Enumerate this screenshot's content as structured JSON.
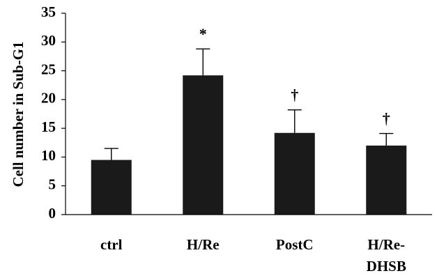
{
  "chart_data": {
    "type": "bar",
    "title": "",
    "xlabel": "",
    "ylabel": "Cell number in Sub-G1",
    "ylim": [
      0,
      35
    ],
    "yticks": [
      0,
      5,
      10,
      15,
      20,
      25,
      30,
      35
    ],
    "grid": false,
    "categories": [
      {
        "lines": [
          "ctrl"
        ]
      },
      {
        "lines": [
          "H/Re"
        ]
      },
      {
        "lines": [
          "PostC"
        ]
      },
      {
        "lines": [
          "H/Re-",
          "DHSB"
        ]
      }
    ],
    "values": [
      9.5,
      24.2,
      14.2,
      12.0
    ],
    "errors": [
      2.0,
      4.6,
      4.0,
      2.1
    ],
    "markers": [
      "",
      "*",
      "†",
      "†"
    ],
    "bar_color": "#1a1a1a",
    "axis_color": "#000000"
  }
}
